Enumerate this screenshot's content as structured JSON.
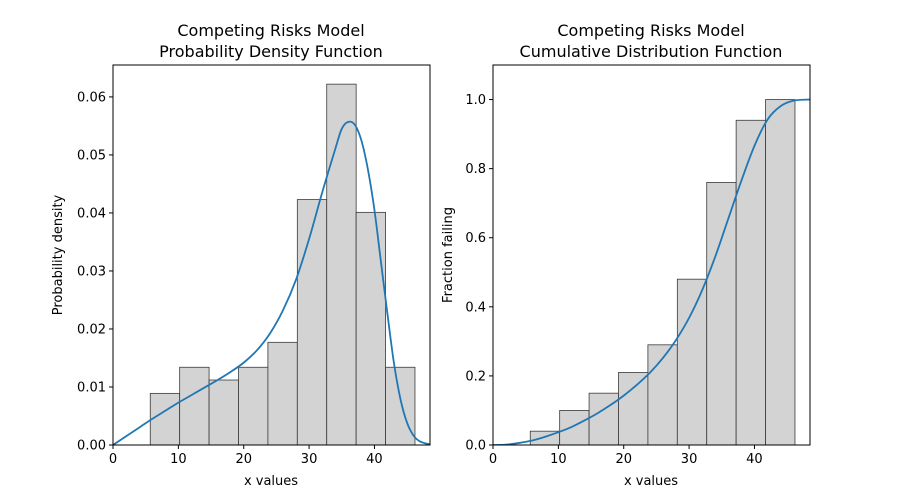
{
  "colors": {
    "bar_fill": "#d3d3d3",
    "bar_edge": "#3a3a3a",
    "curve": "#1f77b4",
    "axes": "#000000"
  },
  "chart_data": [
    {
      "type": "bar",
      "title_line1": "Competing Risks Model",
      "title_line2": "Probability Density Function",
      "xlabel": "x values",
      "ylabel": "Probability density",
      "xlim": [
        0,
        48.5
      ],
      "ylim": [
        0,
        0.0655
      ],
      "xticks": [
        0,
        10,
        20,
        30,
        40
      ],
      "yticks": [
        "0.00",
        "0.01",
        "0.02",
        "0.03",
        "0.04",
        "0.05",
        "0.06"
      ],
      "histogram": {
        "bin_edges": [
          5.7,
          10.2,
          14.7,
          19.2,
          23.7,
          28.2,
          32.7,
          37.2,
          41.7,
          46.2
        ],
        "values": [
          0.0089,
          0.0134,
          0.0112,
          0.0134,
          0.0177,
          0.0423,
          0.0622,
          0.0401,
          0.0134
        ]
      },
      "line": {
        "x": [
          0,
          2,
          4,
          6,
          8,
          10,
          12,
          14,
          16,
          18,
          20,
          22,
          24,
          26,
          28,
          30,
          32,
          34,
          35,
          36,
          37,
          38,
          39,
          40,
          41,
          42,
          43,
          44,
          45,
          46,
          47,
          48.5
        ],
        "y": [
          0.0,
          0.0015,
          0.003,
          0.0045,
          0.0059,
          0.0073,
          0.0086,
          0.0099,
          0.0112,
          0.0126,
          0.0142,
          0.0163,
          0.0192,
          0.0232,
          0.0285,
          0.0355,
          0.0435,
          0.051,
          0.0545,
          0.0557,
          0.0552,
          0.0525,
          0.0475,
          0.0405,
          0.0315,
          0.0225,
          0.014,
          0.0078,
          0.0038,
          0.0016,
          0.0006,
          0.0001
        ]
      }
    },
    {
      "type": "bar",
      "title_line1": "Competing Risks Model",
      "title_line2": "Cumulative Distribution Function",
      "xlabel": "x values",
      "ylabel": "Fraction failing",
      "xlim": [
        0,
        48.5
      ],
      "ylim": [
        0,
        1.1
      ],
      "xticks": [
        0,
        10,
        20,
        30,
        40
      ],
      "yticks": [
        "0.0",
        "0.2",
        "0.4",
        "0.6",
        "0.8",
        "1.0"
      ],
      "histogram": {
        "bin_edges": [
          5.7,
          10.2,
          14.7,
          19.2,
          23.7,
          28.2,
          32.7,
          37.2,
          41.7,
          46.2
        ],
        "values": [
          0.04,
          0.1,
          0.15,
          0.21,
          0.29,
          0.48,
          0.76,
          0.94,
          1.0
        ]
      },
      "line": {
        "x": [
          0,
          2,
          4,
          6,
          8,
          10,
          12,
          14,
          16,
          18,
          20,
          22,
          24,
          26,
          28,
          30,
          32,
          34,
          36,
          38,
          40,
          42,
          44,
          46,
          48.5
        ],
        "y": [
          0.0,
          0.001,
          0.006,
          0.013,
          0.024,
          0.037,
          0.052,
          0.071,
          0.092,
          0.116,
          0.143,
          0.174,
          0.209,
          0.252,
          0.304,
          0.368,
          0.448,
          0.545,
          0.655,
          0.765,
          0.866,
          0.942,
          0.981,
          0.997,
          1.0
        ]
      }
    }
  ]
}
